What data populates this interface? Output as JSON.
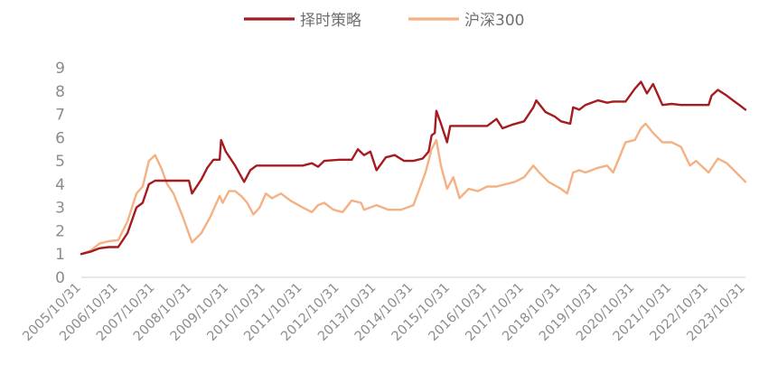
{
  "chart_data": {
    "type": "line",
    "title": "",
    "xlabel": "",
    "ylabel": "",
    "ylim": [
      0,
      9
    ],
    "yticks": [
      0,
      1,
      2,
      3,
      4,
      5,
      6,
      7,
      8,
      9
    ],
    "xlim": [
      "2005/10/31",
      "2023/10/31"
    ],
    "xticks": [
      "2005/10/31",
      "2006/10/31",
      "2007/10/31",
      "2008/10/31",
      "2009/10/31",
      "2010/10/31",
      "2011/10/31",
      "2012/10/31",
      "2013/10/31",
      "2014/10/31",
      "2015/10/31",
      "2016/10/31",
      "2017/10/31",
      "2018/10/31",
      "2019/10/31",
      "2020/10/31",
      "2021/10/31",
      "2022/10/31",
      "2023/10/31"
    ],
    "grid": false,
    "legend_position": "top-center",
    "series": [
      {
        "name": "择时策略",
        "color": "#a61b1f",
        "points": [
          [
            "2005/10/31",
            1.0
          ],
          [
            "2006/01/31",
            1.1
          ],
          [
            "2006/04/30",
            1.25
          ],
          [
            "2006/07/31",
            1.3
          ],
          [
            "2006/10/31",
            1.3
          ],
          [
            "2007/01/31",
            1.9
          ],
          [
            "2007/04/30",
            3.0
          ],
          [
            "2007/06/30",
            3.2
          ],
          [
            "2007/08/31",
            4.0
          ],
          [
            "2007/10/31",
            4.15
          ],
          [
            "2008/01/31",
            4.15
          ],
          [
            "2008/04/30",
            4.15
          ],
          [
            "2008/06/30",
            4.15
          ],
          [
            "2008/09/30",
            4.15
          ],
          [
            "2008/10/31",
            3.6
          ],
          [
            "2009/01/31",
            4.2
          ],
          [
            "2009/03/31",
            4.7
          ],
          [
            "2009/05/31",
            5.05
          ],
          [
            "2009/07/31",
            5.05
          ],
          [
            "2009/08/15",
            5.9
          ],
          [
            "2009/09/30",
            5.4
          ],
          [
            "2009/12/31",
            4.8
          ],
          [
            "2010/03/31",
            4.1
          ],
          [
            "2010/05/31",
            4.6
          ],
          [
            "2010/07/31",
            4.8
          ],
          [
            "2010/10/31",
            4.8
          ],
          [
            "2011/03/31",
            4.8
          ],
          [
            "2011/06/30",
            4.8
          ],
          [
            "2011/10/31",
            4.8
          ],
          [
            "2012/01/31",
            4.9
          ],
          [
            "2012/03/31",
            4.75
          ],
          [
            "2012/05/31",
            5.0
          ],
          [
            "2012/10/31",
            5.05
          ],
          [
            "2013/02/28",
            5.05
          ],
          [
            "2013/04/30",
            5.5
          ],
          [
            "2013/06/30",
            5.25
          ],
          [
            "2013/08/31",
            5.4
          ],
          [
            "2013/10/31",
            4.6
          ],
          [
            "2014/01/31",
            5.15
          ],
          [
            "2014/04/30",
            5.25
          ],
          [
            "2014/07/31",
            5.0
          ],
          [
            "2014/10/31",
            5.0
          ],
          [
            "2015/01/31",
            5.1
          ],
          [
            "2015/03/31",
            5.4
          ],
          [
            "2015/04/30",
            6.1
          ],
          [
            "2015/05/31",
            6.2
          ],
          [
            "2015/06/15",
            7.15
          ],
          [
            "2015/07/31",
            6.6
          ],
          [
            "2015/09/30",
            5.8
          ],
          [
            "2015/10/31",
            6.5
          ],
          [
            "2016/03/31",
            6.5
          ],
          [
            "2016/07/31",
            6.5
          ],
          [
            "2016/10/31",
            6.5
          ],
          [
            "2017/01/31",
            6.8
          ],
          [
            "2017/03/31",
            6.4
          ],
          [
            "2017/06/30",
            6.55
          ],
          [
            "2017/10/31",
            6.7
          ],
          [
            "2018/01/31",
            7.3
          ],
          [
            "2018/02/28",
            7.6
          ],
          [
            "2018/05/31",
            7.1
          ],
          [
            "2018/08/31",
            6.9
          ],
          [
            "2018/10/31",
            6.7
          ],
          [
            "2019/01/31",
            6.6
          ],
          [
            "2019/02/28",
            7.3
          ],
          [
            "2019/04/30",
            7.2
          ],
          [
            "2019/06/30",
            7.4
          ],
          [
            "2019/10/31",
            7.6
          ],
          [
            "2020/01/31",
            7.5
          ],
          [
            "2020/03/31",
            7.55
          ],
          [
            "2020/07/31",
            7.55
          ],
          [
            "2020/10/31",
            8.1
          ],
          [
            "2020/12/31",
            8.4
          ],
          [
            "2021/02/28",
            7.9
          ],
          [
            "2021/04/30",
            8.3
          ],
          [
            "2021/07/31",
            7.4
          ],
          [
            "2021/10/31",
            7.45
          ],
          [
            "2022/01/31",
            7.4
          ],
          [
            "2022/06/30",
            7.4
          ],
          [
            "2022/10/31",
            7.4
          ],
          [
            "2022/11/30",
            7.8
          ],
          [
            "2023/01/31",
            8.05
          ],
          [
            "2023/04/30",
            7.8
          ],
          [
            "2023/06/30",
            7.6
          ],
          [
            "2023/08/31",
            7.4
          ],
          [
            "2023/10/31",
            7.2
          ]
        ]
      },
      {
        "name": "沪深300",
        "color": "#f4b183",
        "points": [
          [
            "2005/10/31",
            1.0
          ],
          [
            "2006/01/31",
            1.15
          ],
          [
            "2006/04/30",
            1.45
          ],
          [
            "2006/07/31",
            1.55
          ],
          [
            "2006/10/31",
            1.6
          ],
          [
            "2007/01/31",
            2.4
          ],
          [
            "2007/04/30",
            3.6
          ],
          [
            "2007/06/30",
            3.9
          ],
          [
            "2007/08/31",
            5.0
          ],
          [
            "2007/10/31",
            5.25
          ],
          [
            "2007/12/31",
            4.7
          ],
          [
            "2008/02/28",
            4.0
          ],
          [
            "2008/04/30",
            3.6
          ],
          [
            "2008/07/31",
            2.6
          ],
          [
            "2008/10/31",
            1.5
          ],
          [
            "2009/01/31",
            1.9
          ],
          [
            "2009/04/30",
            2.6
          ],
          [
            "2009/07/31",
            3.5
          ],
          [
            "2009/08/31",
            3.2
          ],
          [
            "2009/10/31",
            3.7
          ],
          [
            "2009/12/31",
            3.7
          ],
          [
            "2010/02/28",
            3.5
          ],
          [
            "2010/04/30",
            3.2
          ],
          [
            "2010/06/30",
            2.7
          ],
          [
            "2010/08/31",
            3.0
          ],
          [
            "2010/10/31",
            3.6
          ],
          [
            "2010/12/31",
            3.4
          ],
          [
            "2011/03/31",
            3.6
          ],
          [
            "2011/06/30",
            3.3
          ],
          [
            "2011/10/31",
            3.0
          ],
          [
            "2012/01/31",
            2.8
          ],
          [
            "2012/03/31",
            3.1
          ],
          [
            "2012/05/31",
            3.2
          ],
          [
            "2012/08/31",
            2.9
          ],
          [
            "2012/11/30",
            2.8
          ],
          [
            "2013/02/28",
            3.3
          ],
          [
            "2013/05/31",
            3.2
          ],
          [
            "2013/06/30",
            2.9
          ],
          [
            "2013/10/31",
            3.1
          ],
          [
            "2014/02/28",
            2.9
          ],
          [
            "2014/06/30",
            2.9
          ],
          [
            "2014/10/31",
            3.1
          ],
          [
            "2014/12/31",
            3.8
          ],
          [
            "2015/02/28",
            4.5
          ],
          [
            "2015/04/30",
            5.5
          ],
          [
            "2015/06/15",
            5.9
          ],
          [
            "2015/07/31",
            4.8
          ],
          [
            "2015/09/30",
            3.8
          ],
          [
            "2015/11/30",
            4.3
          ],
          [
            "2016/01/31",
            3.4
          ],
          [
            "2016/04/30",
            3.8
          ],
          [
            "2016/07/31",
            3.7
          ],
          [
            "2016/10/31",
            3.9
          ],
          [
            "2017/01/31",
            3.9
          ],
          [
            "2017/04/30",
            4.0
          ],
          [
            "2017/07/31",
            4.1
          ],
          [
            "2017/10/31",
            4.3
          ],
          [
            "2018/01/31",
            4.8
          ],
          [
            "2018/03/31",
            4.5
          ],
          [
            "2018/06/30",
            4.1
          ],
          [
            "2018/10/31",
            3.8
          ],
          [
            "2018/12/31",
            3.6
          ],
          [
            "2019/02/28",
            4.5
          ],
          [
            "2019/04/30",
            4.6
          ],
          [
            "2019/06/30",
            4.5
          ],
          [
            "2019/10/31",
            4.7
          ],
          [
            "2020/01/31",
            4.8
          ],
          [
            "2020/03/31",
            4.5
          ],
          [
            "2020/07/31",
            5.8
          ],
          [
            "2020/10/31",
            5.9
          ],
          [
            "2020/12/31",
            6.4
          ],
          [
            "2021/02/15",
            6.6
          ],
          [
            "2021/04/30",
            6.2
          ],
          [
            "2021/07/31",
            5.8
          ],
          [
            "2021/10/31",
            5.8
          ],
          [
            "2022/01/31",
            5.6
          ],
          [
            "2022/04/30",
            4.8
          ],
          [
            "2022/06/30",
            5.0
          ],
          [
            "2022/10/31",
            4.5
          ],
          [
            "2023/01/31",
            5.1
          ],
          [
            "2023/04/30",
            4.9
          ],
          [
            "2023/07/31",
            4.5
          ],
          [
            "2023/10/31",
            4.1
          ]
        ]
      }
    ]
  }
}
